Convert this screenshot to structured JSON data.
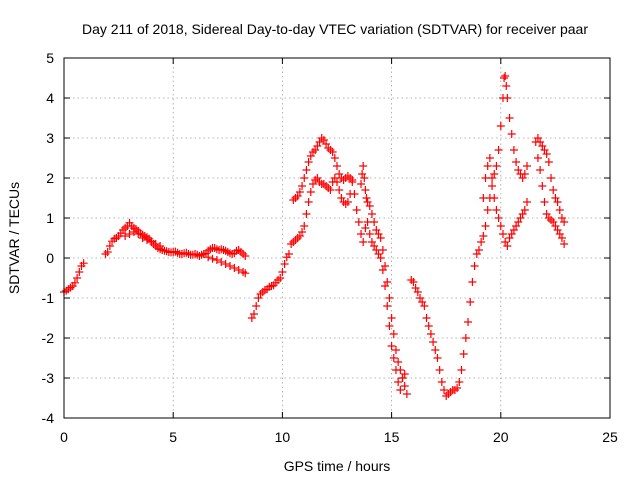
{
  "chart_data": {
    "type": "scatter",
    "title": "Day 211 of 2018, Sidereal Day-to-day VTEC variation (SDTVAR) for receiver paar",
    "xlabel": "GPS time / hours",
    "ylabel": "SDTVAR / TECUs",
    "xlim": [
      0,
      25
    ],
    "ylim": [
      -4,
      5
    ],
    "xticks": [
      "0",
      "5",
      "10",
      "15",
      "20",
      "25"
    ],
    "yticks": [
      "-4",
      "-3",
      "-2",
      "-1",
      "0",
      "1",
      "2",
      "3",
      "4",
      "5"
    ],
    "grid": true,
    "legend": "none",
    "marker": "plus",
    "color": "#ff0000",
    "series": [
      {
        "name": "SDTVAR",
        "points": [
          [
            0.0,
            -0.85
          ],
          [
            0.1,
            -0.82
          ],
          [
            0.2,
            -0.78
          ],
          [
            0.3,
            -0.74
          ],
          [
            0.4,
            -0.7
          ],
          [
            0.5,
            -0.62
          ],
          [
            0.6,
            -0.5
          ],
          [
            0.7,
            -0.35
          ],
          [
            0.8,
            -0.2
          ],
          [
            0.9,
            -0.13
          ],
          [
            1.9,
            0.1
          ],
          [
            2.0,
            0.15
          ],
          [
            2.1,
            0.3
          ],
          [
            2.2,
            0.42
          ],
          [
            2.3,
            0.48
          ],
          [
            2.4,
            0.5
          ],
          [
            2.5,
            0.55
          ],
          [
            2.6,
            0.62
          ],
          [
            2.7,
            0.7
          ],
          [
            2.8,
            0.75
          ],
          [
            2.9,
            0.8
          ],
          [
            3.0,
            0.88
          ],
          [
            3.1,
            0.8
          ],
          [
            3.2,
            0.75
          ],
          [
            3.3,
            0.72
          ],
          [
            3.4,
            0.68
          ],
          [
            3.5,
            0.62
          ],
          [
            3.6,
            0.58
          ],
          [
            3.7,
            0.55
          ],
          [
            3.8,
            0.52
          ],
          [
            3.9,
            0.48
          ],
          [
            4.0,
            0.42
          ],
          [
            4.1,
            0.35
          ],
          [
            4.2,
            0.3
          ],
          [
            4.3,
            0.25
          ],
          [
            4.4,
            0.22
          ],
          [
            4.5,
            0.2
          ],
          [
            4.6,
            0.18
          ],
          [
            4.7,
            0.17
          ],
          [
            4.8,
            0.15
          ],
          [
            4.9,
            0.14
          ],
          [
            5.0,
            0.15
          ],
          [
            5.1,
            0.16
          ],
          [
            5.2,
            0.13
          ],
          [
            5.3,
            0.1
          ],
          [
            5.4,
            0.1
          ],
          [
            5.5,
            0.12
          ],
          [
            5.6,
            0.13
          ],
          [
            5.7,
            0.1
          ],
          [
            5.8,
            0.08
          ],
          [
            5.9,
            0.08
          ],
          [
            6.0,
            0.1
          ],
          [
            6.1,
            0.08
          ],
          [
            6.2,
            0.05
          ],
          [
            6.3,
            0.08
          ],
          [
            6.4,
            0.1
          ],
          [
            6.5,
            0.12
          ],
          [
            6.6,
            0.18
          ],
          [
            6.7,
            0.22
          ],
          [
            6.8,
            0.25
          ],
          [
            6.9,
            0.25
          ],
          [
            7.0,
            0.22
          ],
          [
            7.1,
            0.2
          ],
          [
            7.2,
            0.22
          ],
          [
            7.3,
            0.2
          ],
          [
            7.4,
            0.18
          ],
          [
            7.5,
            0.15
          ],
          [
            7.6,
            0.12
          ],
          [
            7.7,
            0.1
          ],
          [
            7.8,
            0.12
          ],
          [
            7.9,
            0.18
          ],
          [
            8.0,
            0.2
          ],
          [
            8.1,
            0.15
          ],
          [
            8.2,
            0.1
          ],
          [
            8.3,
            0.05
          ],
          [
            2.8,
            0.55
          ],
          [
            3.0,
            0.6
          ],
          [
            3.2,
            0.65
          ],
          [
            3.4,
            0.6
          ],
          [
            3.6,
            0.5
          ],
          [
            3.8,
            0.45
          ],
          [
            4.0,
            0.4
          ],
          [
            4.2,
            0.35
          ],
          [
            4.4,
            0.3
          ],
          [
            6.6,
            0.02
          ],
          [
            6.8,
            -0.02
          ],
          [
            7.0,
            -0.05
          ],
          [
            7.2,
            -0.1
          ],
          [
            7.4,
            -0.15
          ],
          [
            7.6,
            -0.2
          ],
          [
            7.8,
            -0.25
          ],
          [
            8.0,
            -0.3
          ],
          [
            8.2,
            -0.35
          ],
          [
            8.3,
            -0.38
          ],
          [
            8.6,
            -1.5
          ],
          [
            8.7,
            -1.4
          ],
          [
            8.8,
            -1.2
          ],
          [
            8.9,
            -1.0
          ],
          [
            9.0,
            -0.9
          ],
          [
            9.1,
            -0.85
          ],
          [
            9.2,
            -0.8
          ],
          [
            9.3,
            -0.78
          ],
          [
            9.4,
            -0.72
          ],
          [
            9.5,
            -0.7
          ],
          [
            9.6,
            -0.68
          ],
          [
            9.7,
            -0.62
          ],
          [
            9.8,
            -0.55
          ],
          [
            9.9,
            -0.5
          ],
          [
            10.0,
            -0.35
          ],
          [
            10.1,
            -0.15
          ],
          [
            10.2,
            0.02
          ],
          [
            10.3,
            0.1
          ],
          [
            10.4,
            0.35
          ],
          [
            10.5,
            0.4
          ],
          [
            10.6,
            0.45
          ],
          [
            10.7,
            0.5
          ],
          [
            10.8,
            0.55
          ],
          [
            10.9,
            0.65
          ],
          [
            11.0,
            0.8
          ],
          [
            11.1,
            1.1
          ],
          [
            11.2,
            1.4
          ],
          [
            11.3,
            1.65
          ],
          [
            11.4,
            1.85
          ],
          [
            11.5,
            1.95
          ],
          [
            11.6,
            2.0
          ],
          [
            11.7,
            1.9
          ],
          [
            11.8,
            1.85
          ],
          [
            11.9,
            1.85
          ],
          [
            12.0,
            1.8
          ],
          [
            12.1,
            1.75
          ],
          [
            12.2,
            1.7
          ],
          [
            12.3,
            1.9
          ],
          [
            12.4,
            2.0
          ],
          [
            12.5,
            1.9
          ],
          [
            12.6,
            1.7
          ],
          [
            12.7,
            1.5
          ],
          [
            12.8,
            1.4
          ],
          [
            12.9,
            1.35
          ],
          [
            13.0,
            1.4
          ],
          [
            13.1,
            1.6
          ],
          [
            13.2,
            1.9
          ],
          [
            10.5,
            1.45
          ],
          [
            10.6,
            1.5
          ],
          [
            10.7,
            1.55
          ],
          [
            10.8,
            1.65
          ],
          [
            10.9,
            1.8
          ],
          [
            11.0,
            2.0
          ],
          [
            11.1,
            2.2
          ],
          [
            11.2,
            2.4
          ],
          [
            11.3,
            2.55
          ],
          [
            11.4,
            2.65
          ],
          [
            11.5,
            2.7
          ],
          [
            11.6,
            2.8
          ],
          [
            11.7,
            2.9
          ],
          [
            11.8,
            3.0
          ],
          [
            11.9,
            2.95
          ],
          [
            12.0,
            2.85
          ],
          [
            12.1,
            2.75
          ],
          [
            12.2,
            2.7
          ],
          [
            12.3,
            2.65
          ],
          [
            12.4,
            2.5
          ],
          [
            12.5,
            2.3
          ],
          [
            12.6,
            2.1
          ],
          [
            12.7,
            2.0
          ],
          [
            12.8,
            1.95
          ],
          [
            12.9,
            2.0
          ],
          [
            13.0,
            2.05
          ],
          [
            13.1,
            2.0
          ],
          [
            13.2,
            1.95
          ],
          [
            13.3,
            1.6
          ],
          [
            13.4,
            1.2
          ],
          [
            13.5,
            0.9
          ],
          [
            13.6,
            0.6
          ],
          [
            13.7,
            0.4
          ],
          [
            13.6,
            1.85
          ],
          [
            13.65,
            2.1
          ],
          [
            13.7,
            2.3
          ],
          [
            13.75,
            2.0
          ],
          [
            13.8,
            1.7
          ],
          [
            13.85,
            1.5
          ],
          [
            13.9,
            1.4
          ],
          [
            14.0,
            1.3
          ],
          [
            14.1,
            1.1
          ],
          [
            14.2,
            0.9
          ],
          [
            14.3,
            0.7
          ],
          [
            14.4,
            0.6
          ],
          [
            14.5,
            0.5
          ],
          [
            14.6,
            0.2
          ],
          [
            14.7,
            -0.2
          ],
          [
            14.8,
            -0.6
          ],
          [
            14.9,
            -1.0
          ],
          [
            15.0,
            -1.5
          ],
          [
            15.1,
            -1.9
          ],
          [
            15.2,
            -2.3
          ],
          [
            15.3,
            -2.6
          ],
          [
            15.4,
            -2.8
          ],
          [
            15.5,
            -3.0
          ],
          [
            15.6,
            -3.2
          ],
          [
            15.7,
            -3.4
          ],
          [
            13.8,
            0.75
          ],
          [
            13.9,
            0.9
          ],
          [
            14.0,
            0.6
          ],
          [
            14.1,
            0.4
          ],
          [
            14.2,
            0.3
          ],
          [
            14.3,
            0.2
          ],
          [
            14.4,
            0.1
          ],
          [
            14.5,
            0.0
          ],
          [
            14.6,
            -0.3
          ],
          [
            14.7,
            -0.7
          ],
          [
            14.8,
            -1.2
          ],
          [
            14.9,
            -1.7
          ],
          [
            15.0,
            -2.2
          ],
          [
            15.1,
            -2.5
          ],
          [
            15.2,
            -2.8
          ],
          [
            15.3,
            -3.1
          ],
          [
            15.4,
            -3.3
          ],
          [
            15.5,
            -3.0
          ],
          [
            15.6,
            -2.9
          ],
          [
            15.9,
            -0.55
          ],
          [
            16.0,
            -0.6
          ],
          [
            16.1,
            -0.75
          ],
          [
            16.2,
            -0.85
          ],
          [
            16.3,
            -1.0
          ],
          [
            16.4,
            -1.1
          ],
          [
            16.5,
            -1.2
          ],
          [
            16.6,
            -1.5
          ],
          [
            16.7,
            -1.7
          ],
          [
            16.8,
            -1.9
          ],
          [
            16.9,
            -2.1
          ],
          [
            17.0,
            -2.3
          ],
          [
            17.1,
            -2.5
          ],
          [
            17.2,
            -2.8
          ],
          [
            17.3,
            -3.1
          ],
          [
            17.4,
            -3.3
          ],
          [
            17.5,
            -3.45
          ],
          [
            17.6,
            -3.4
          ],
          [
            17.7,
            -3.35
          ],
          [
            17.8,
            -3.3
          ],
          [
            17.9,
            -3.3
          ],
          [
            18.0,
            -3.25
          ],
          [
            18.1,
            -3.1
          ],
          [
            18.2,
            -2.8
          ],
          [
            18.3,
            -2.4
          ],
          [
            18.4,
            -2.0
          ],
          [
            18.5,
            -1.6
          ],
          [
            18.6,
            -1.1
          ],
          [
            18.7,
            -0.6
          ],
          [
            18.8,
            -0.2
          ],
          [
            18.9,
            0.1
          ],
          [
            19.0,
            0.2
          ],
          [
            19.1,
            0.4
          ],
          [
            19.2,
            0.55
          ],
          [
            19.3,
            0.8
          ],
          [
            19.4,
            1.2
          ],
          [
            19.5,
            1.5
          ],
          [
            19.6,
            1.8
          ],
          [
            19.7,
            2.1
          ],
          [
            19.8,
            2.3
          ],
          [
            19.9,
            2.7
          ],
          [
            20.0,
            3.3
          ],
          [
            20.1,
            4.0
          ],
          [
            20.15,
            4.5
          ],
          [
            20.2,
            4.55
          ],
          [
            20.25,
            4.3
          ],
          [
            20.3,
            4.0
          ],
          [
            20.4,
            3.5
          ],
          [
            20.5,
            3.1
          ],
          [
            20.6,
            2.7
          ],
          [
            20.7,
            2.4
          ],
          [
            20.8,
            2.2
          ],
          [
            20.9,
            2.1
          ],
          [
            21.0,
            2.0
          ],
          [
            21.1,
            2.1
          ],
          [
            21.2,
            2.3
          ],
          [
            19.2,
            1.5
          ],
          [
            19.3,
            2.0
          ],
          [
            19.4,
            2.3
          ],
          [
            19.5,
            2.5
          ],
          [
            19.6,
            2.0
          ],
          [
            19.7,
            1.5
          ],
          [
            19.8,
            1.2
          ],
          [
            19.9,
            1.0
          ],
          [
            20.0,
            0.8
          ],
          [
            20.1,
            0.6
          ],
          [
            20.2,
            0.4
          ],
          [
            20.3,
            0.3
          ],
          [
            20.4,
            0.5
          ],
          [
            20.5,
            0.6
          ],
          [
            20.6,
            0.7
          ],
          [
            20.7,
            0.8
          ],
          [
            20.8,
            0.9
          ],
          [
            20.9,
            1.0
          ],
          [
            21.0,
            1.1
          ],
          [
            21.1,
            1.2
          ],
          [
            21.2,
            1.4
          ],
          [
            21.6,
            2.9
          ],
          [
            21.7,
            3.0
          ],
          [
            21.8,
            2.9
          ],
          [
            21.9,
            2.8
          ],
          [
            22.0,
            2.7
          ],
          [
            22.1,
            2.6
          ],
          [
            22.2,
            2.4
          ],
          [
            22.3,
            2.0
          ],
          [
            22.4,
            1.7
          ],
          [
            22.5,
            1.5
          ],
          [
            22.6,
            1.4
          ],
          [
            22.7,
            1.2
          ],
          [
            22.8,
            1.0
          ],
          [
            22.9,
            0.9
          ],
          [
            21.7,
            2.5
          ],
          [
            21.8,
            2.2
          ],
          [
            21.9,
            1.8
          ],
          [
            22.0,
            1.4
          ],
          [
            22.1,
            1.1
          ],
          [
            22.2,
            1.0
          ],
          [
            22.3,
            0.95
          ],
          [
            22.4,
            0.9
          ],
          [
            22.5,
            0.8
          ],
          [
            22.6,
            0.7
          ],
          [
            22.7,
            0.6
          ],
          [
            22.8,
            0.5
          ],
          [
            22.9,
            0.35
          ]
        ]
      }
    ]
  }
}
